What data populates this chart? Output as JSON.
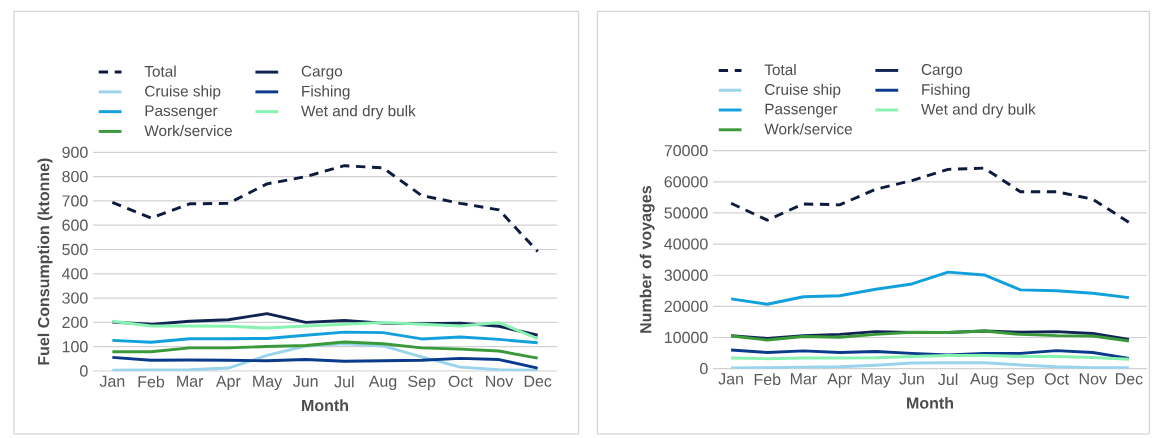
{
  "chart_data": [
    {
      "type": "line",
      "categories": [
        "Jan",
        "Feb",
        "Mar",
        "Apr",
        "May",
        "Jun",
        "Jul",
        "Aug",
        "Sep",
        "Oct",
        "Nov",
        "Dec"
      ],
      "xlabel": "Month",
      "ylabel": "Fuel Consumption (ktonne)",
      "ylim": [
        0,
        900
      ],
      "yticks": [
        0,
        100,
        200,
        300,
        400,
        500,
        600,
        700,
        800,
        900
      ],
      "grid": "y",
      "legend": "top",
      "series": [
        {
          "name": "Total",
          "color": "#0d1b3e",
          "line_style": "dashed",
          "values": [
            694,
            630,
            688,
            690,
            770,
            800,
            845,
            836,
            722,
            690,
            663,
            492
          ]
        },
        {
          "name": "Cargo",
          "color": "#0f2453",
          "values": [
            201,
            192,
            205,
            211,
            236,
            200,
            208,
            197,
            195,
            197,
            184,
            147
          ]
        },
        {
          "name": "Cruise ship",
          "color": "#9ad3ec",
          "values": [
            3,
            4,
            5,
            12,
            64,
            103,
            112,
            103,
            58,
            16,
            5,
            3
          ]
        },
        {
          "name": "Fishing",
          "color": "#0a3a8c",
          "values": [
            56,
            44,
            45,
            44,
            42,
            47,
            40,
            42,
            44,
            52,
            47,
            12
          ]
        },
        {
          "name": "Passenger",
          "color": "#12a0dc",
          "values": [
            126,
            118,
            133,
            133,
            134,
            147,
            160,
            158,
            132,
            140,
            130,
            116
          ]
        },
        {
          "name": "Wet and dry bulk",
          "color": "#88f2b0",
          "values": [
            205,
            185,
            185,
            184,
            177,
            185,
            192,
            200,
            192,
            185,
            199,
            133
          ]
        },
        {
          "name": "Work/service",
          "color": "#3a9a3a",
          "values": [
            79,
            79,
            95,
            95,
            101,
            105,
            119,
            112,
            95,
            90,
            82,
            53
          ]
        }
      ]
    },
    {
      "type": "line",
      "categories": [
        "Jan",
        "Feb",
        "Mar",
        "Apr",
        "May",
        "Jun",
        "Jul",
        "Aug",
        "Sep",
        "Oct",
        "Nov",
        "Dec"
      ],
      "xlabel": "Month",
      "ylabel": "Number of voyages",
      "ylim": [
        0,
        70000
      ],
      "yticks": [
        0,
        10000,
        20000,
        30000,
        40000,
        50000,
        60000,
        70000
      ],
      "grid": "y",
      "legend": "top",
      "series": [
        {
          "name": "Total",
          "color": "#0d1b3e",
          "line_style": "dashed",
          "values": [
            53100,
            47700,
            52900,
            52600,
            57600,
            60400,
            64000,
            64400,
            56800,
            56800,
            54400,
            47000
          ]
        },
        {
          "name": "Cargo",
          "color": "#0f2453",
          "values": [
            10600,
            9700,
            10600,
            11000,
            11900,
            11600,
            11600,
            12100,
            11700,
            11900,
            11300,
            9400
          ]
        },
        {
          "name": "Cruise ship",
          "color": "#9ad3ec",
          "values": [
            200,
            300,
            500,
            600,
            1100,
            1800,
            1900,
            1900,
            1200,
            600,
            300,
            300
          ]
        },
        {
          "name": "Fishing",
          "color": "#0a3a8c",
          "values": [
            6000,
            5200,
            5700,
            5200,
            5500,
            4900,
            4400,
            4900,
            4900,
            5800,
            5200,
            3300
          ]
        },
        {
          "name": "Passenger",
          "color": "#12a0dc",
          "values": [
            22400,
            20700,
            23100,
            23400,
            25500,
            27200,
            31000,
            30100,
            25300,
            25000,
            24200,
            22800
          ]
        },
        {
          "name": "Wet and dry bulk",
          "color": "#88f2b0",
          "values": [
            3400,
            3200,
            3400,
            3400,
            3500,
            3900,
            4200,
            4200,
            3900,
            3900,
            3600,
            3000
          ]
        },
        {
          "name": "Work/service",
          "color": "#3a9a3a",
          "values": [
            10500,
            9200,
            10300,
            10100,
            11000,
            11700,
            11600,
            12100,
            11000,
            10600,
            10500,
            8900
          ]
        }
      ]
    }
  ]
}
